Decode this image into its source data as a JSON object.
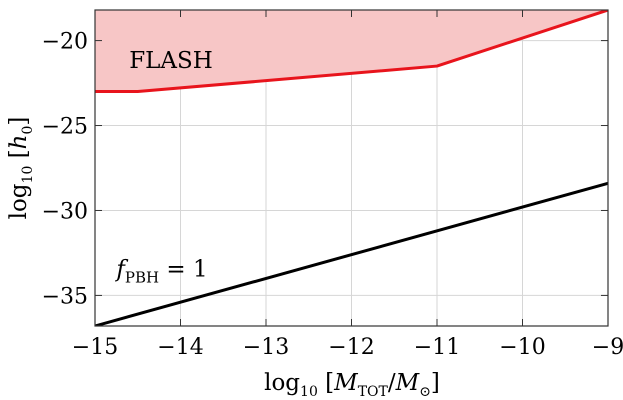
{
  "chart_data": {
    "type": "line",
    "xlabel": {
      "prefix": "log",
      "sub": "10",
      "open": " [",
      "num": "M",
      "num_sub": "TOT",
      "slash": "/",
      "den": "M",
      "den_sub": "⊙",
      "close": "]"
    },
    "ylabel": {
      "prefix": "log",
      "sub": "10",
      "open": " [",
      "var": "h",
      "var_sub": "0",
      "close": "]"
    },
    "xlim": [
      -15,
      -9
    ],
    "ylim": [
      -36.8,
      -18.2
    ],
    "x_ticks": [
      -15,
      -14,
      -13,
      -12,
      -11,
      -10,
      -9
    ],
    "x_tick_labels": [
      "−15",
      "−14",
      "−13",
      "−12",
      "−11",
      "−10",
      "−9"
    ],
    "y_ticks": [
      -20,
      -25,
      -30,
      -35
    ],
    "y_tick_labels": [
      "−20",
      "−25",
      "−30",
      "−35"
    ],
    "grid": true,
    "series": [
      {
        "name": "FLASH",
        "color": "#e8141c",
        "fill": "#f7c6c6",
        "x": [
          -15,
          -14.5,
          -11,
          -9
        ],
        "y": [
          -23.0,
          -23.0,
          -21.5,
          -18.2
        ]
      },
      {
        "name": "f_PBH = 1",
        "color": "#000000",
        "x": [
          -15,
          -9
        ],
        "y": [
          -36.8,
          -28.4
        ]
      }
    ],
    "annotations": [
      {
        "text": "FLASH",
        "x": -14.6,
        "y": -21.6
      },
      {
        "base": "f",
        "sub": "PBH",
        "rest": " = 1",
        "x": -14.75,
        "y": -33.9
      }
    ]
  }
}
